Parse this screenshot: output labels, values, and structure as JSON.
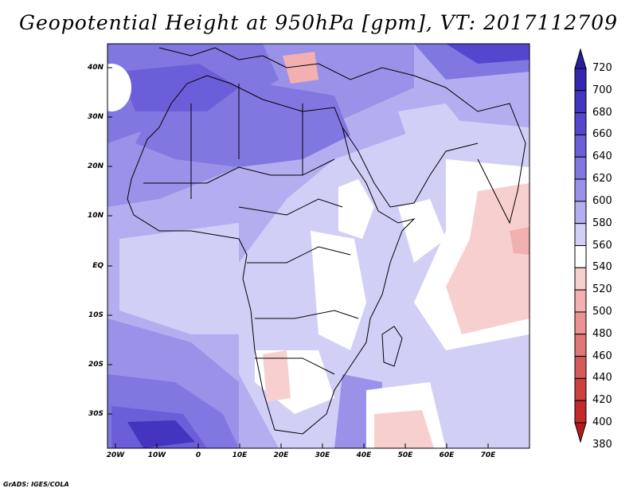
{
  "title": "Geopotential Height at 950hPa [gpm], VT: 2017112709",
  "credit": "GrADS: IGES/COLA",
  "lat_labels": [
    "40N",
    "30N",
    "20N",
    "10N",
    "EQ",
    "10S",
    "20S",
    "30S"
  ],
  "lon_labels": [
    "20W",
    "10W",
    "0",
    "10E",
    "20E",
    "30E",
    "40E",
    "50E",
    "60E",
    "70E"
  ],
  "colorbar": {
    "levels": [
      "720",
      "700",
      "680",
      "660",
      "640",
      "620",
      "600",
      "580",
      "560",
      "540",
      "520",
      "500",
      "480",
      "460",
      "440",
      "420",
      "400",
      "380"
    ],
    "colors": [
      "#2b1e9e",
      "#3526b0",
      "#4335c0",
      "#5447ce",
      "#6a5fd8",
      "#8177e0",
      "#9a92e8",
      "#b4aef0",
      "#d2cff7",
      "#ffffff",
      "#f8cfcf",
      "#f2b0b0",
      "#e99393",
      "#e07676",
      "#d65a5a",
      "#cc4040",
      "#c22a2a",
      "#b51a1a"
    ]
  },
  "map_data": {
    "variable": "Geopotential Height",
    "level": "950hPa",
    "units": "gpm",
    "valid_time": "2017112709",
    "lon_range": [
      -22,
      80
    ],
    "lat_range": [
      -37,
      45
    ]
  }
}
